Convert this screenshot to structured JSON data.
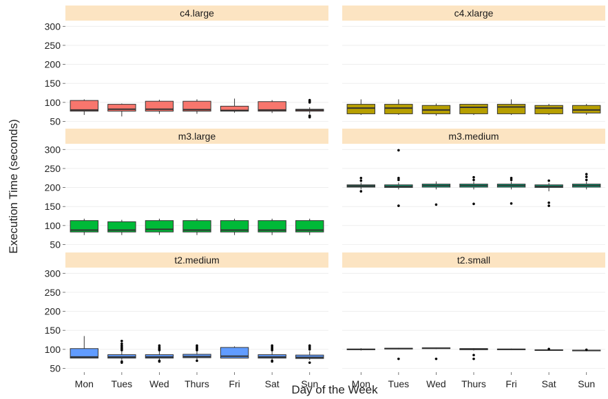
{
  "chart_data": {
    "type": "boxplot",
    "xlabel": "Day of the Week",
    "ylabel": "Execution Time (seconds)",
    "categories": [
      "Mon",
      "Tues",
      "Wed",
      "Thurs",
      "Fri",
      "Sat",
      "Sun"
    ],
    "ylim": [
      40,
      315
    ],
    "yticks": [
      50,
      100,
      150,
      200,
      250,
      300
    ],
    "ytick_labels": [
      "50",
      "100",
      "150",
      "200",
      "250",
      "300"
    ],
    "grid": true,
    "panels": [
      {
        "name": "c4.large",
        "color": "#F8766D",
        "boxes": [
          {
            "day": "Mon",
            "min": 67,
            "q1": 77,
            "median": 80,
            "q3": 105,
            "max": 108,
            "outliers": []
          },
          {
            "day": "Tues",
            "min": 63,
            "q1": 77,
            "median": 82,
            "q3": 95,
            "max": 97,
            "outliers": []
          },
          {
            "day": "Wed",
            "min": 70,
            "q1": 77,
            "median": 82,
            "q3": 103,
            "max": 107,
            "outliers": []
          },
          {
            "day": "Thurs",
            "min": 70,
            "q1": 77,
            "median": 81,
            "q3": 103,
            "max": 108,
            "outliers": []
          },
          {
            "day": "Fri",
            "min": 73,
            "q1": 77,
            "median": 79,
            "q3": 90,
            "max": 110,
            "outliers": []
          },
          {
            "day": "Sat",
            "min": 72,
            "q1": 77,
            "median": 80,
            "q3": 102,
            "max": 106,
            "outliers": []
          },
          {
            "day": "Sun",
            "min": 70,
            "q1": 77,
            "median": 80,
            "q3": 82,
            "max": 87,
            "outliers": [
              61,
              63,
              65,
              100,
              103,
              106
            ]
          }
        ]
      },
      {
        "name": "c4.xlarge",
        "color": "#B79F00",
        "boxes": [
          {
            "day": "Mon",
            "min": 67,
            "q1": 70,
            "median": 85,
            "q3": 95,
            "max": 108,
            "outliers": []
          },
          {
            "day": "Tues",
            "min": 67,
            "q1": 70,
            "median": 85,
            "q3": 95,
            "max": 108,
            "outliers": []
          },
          {
            "day": "Wed",
            "min": 65,
            "q1": 70,
            "median": 80,
            "q3": 92,
            "max": 97,
            "outliers": []
          },
          {
            "day": "Thurs",
            "min": 67,
            "q1": 70,
            "median": 87,
            "q3": 95,
            "max": 96,
            "outliers": []
          },
          {
            "day": "Fri",
            "min": 67,
            "q1": 70,
            "median": 88,
            "q3": 95,
            "max": 108,
            "outliers": []
          },
          {
            "day": "Sat",
            "min": 67,
            "q1": 70,
            "median": 85,
            "q3": 92,
            "max": 96,
            "outliers": []
          },
          {
            "day": "Sun",
            "min": 67,
            "q1": 72,
            "median": 80,
            "q3": 92,
            "max": 96,
            "outliers": []
          }
        ]
      },
      {
        "name": "m3.large",
        "color": "#00BA38",
        "boxes": [
          {
            "day": "Mon",
            "min": 75,
            "q1": 83,
            "median": 88,
            "q3": 113,
            "max": 118,
            "outliers": []
          },
          {
            "day": "Tues",
            "min": 75,
            "q1": 83,
            "median": 88,
            "q3": 110,
            "max": 115,
            "outliers": []
          },
          {
            "day": "Wed",
            "min": 75,
            "q1": 83,
            "median": 90,
            "q3": 113,
            "max": 118,
            "outliers": []
          },
          {
            "day": "Thurs",
            "min": 75,
            "q1": 83,
            "median": 88,
            "q3": 113,
            "max": 118,
            "outliers": []
          },
          {
            "day": "Fri",
            "min": 75,
            "q1": 83,
            "median": 88,
            "q3": 113,
            "max": 118,
            "outliers": []
          },
          {
            "day": "Sat",
            "min": 75,
            "q1": 83,
            "median": 88,
            "q3": 113,
            "max": 118,
            "outliers": []
          },
          {
            "day": "Sun",
            "min": 75,
            "q1": 83,
            "median": 88,
            "q3": 113,
            "max": 118,
            "outliers": []
          }
        ]
      },
      {
        "name": "m3.medium",
        "color": "#00C08B",
        "boxes": [
          {
            "day": "Mon",
            "min": 195,
            "q1": 201,
            "median": 204,
            "q3": 207,
            "max": 213,
            "outliers": [
              190,
              218,
              225
            ]
          },
          {
            "day": "Tues",
            "min": 195,
            "q1": 200,
            "median": 203,
            "q3": 207,
            "max": 213,
            "outliers": [
              152,
              220,
              225,
              298
            ]
          },
          {
            "day": "Wed",
            "min": 195,
            "q1": 201,
            "median": 205,
            "q3": 209,
            "max": 216,
            "outliers": [
              155
            ]
          },
          {
            "day": "Thurs",
            "min": 195,
            "q1": 201,
            "median": 205,
            "q3": 209,
            "max": 216,
            "outliers": [
              157,
              220,
              227
            ]
          },
          {
            "day": "Fri",
            "min": 195,
            "q1": 201,
            "median": 205,
            "q3": 209,
            "max": 216,
            "outliers": [
              158,
              220,
              225
            ]
          },
          {
            "day": "Sat",
            "min": 190,
            "q1": 200,
            "median": 203,
            "q3": 207,
            "max": 212,
            "outliers": [
              152,
              160,
              218
            ]
          },
          {
            "day": "Sun",
            "min": 195,
            "q1": 201,
            "median": 205,
            "q3": 209,
            "max": 216,
            "outliers": [
              220,
              228,
              235
            ]
          }
        ]
      },
      {
        "name": "t2.medium",
        "color": "#619CFF",
        "boxes": [
          {
            "day": "Mon",
            "min": 77,
            "q1": 77,
            "median": 80,
            "q3": 102,
            "max": 135,
            "outliers": []
          },
          {
            "day": "Tues",
            "min": 72,
            "q1": 77,
            "median": 80,
            "q3": 86,
            "max": 95,
            "outliers": [
              65,
              68,
              98,
              102,
              106,
              110,
              115,
              122
            ]
          },
          {
            "day": "Wed",
            "min": 72,
            "q1": 77,
            "median": 80,
            "q3": 86,
            "max": 95,
            "outliers": [
              68,
              70,
              98,
              100,
              103,
              106,
              110
            ]
          },
          {
            "day": "Thurs",
            "min": 72,
            "q1": 78,
            "median": 81,
            "q3": 87,
            "max": 95,
            "outliers": [
              70,
              98,
              102,
              106,
              110
            ]
          },
          {
            "day": "Fri",
            "min": 77,
            "q1": 77,
            "median": 82,
            "q3": 105,
            "max": 108,
            "outliers": []
          },
          {
            "day": "Sat",
            "min": 72,
            "q1": 77,
            "median": 80,
            "q3": 86,
            "max": 95,
            "outliers": [
              68,
              70,
              98,
              102,
              106,
              110
            ]
          },
          {
            "day": "Sun",
            "min": 72,
            "q1": 76,
            "median": 79,
            "q3": 85,
            "max": 95,
            "outliers": [
              65,
              100,
              104,
              108,
              110
            ]
          }
        ]
      },
      {
        "name": "t2.small",
        "color": "#F564E3",
        "boxes": [
          {
            "day": "Mon",
            "min": 97,
            "q1": 99,
            "median": 100,
            "q3": 101,
            "max": 103,
            "outliers": []
          },
          {
            "day": "Tues",
            "min": 100,
            "q1": 101,
            "median": 102,
            "q3": 103,
            "max": 104,
            "outliers": [
              75
            ]
          },
          {
            "day": "Wed",
            "min": 101,
            "q1": 102,
            "median": 103,
            "q3": 104,
            "max": 105,
            "outliers": [
              75
            ]
          },
          {
            "day": "Thurs",
            "min": 97,
            "q1": 99,
            "median": 101,
            "q3": 102,
            "max": 103,
            "outliers": [
              75,
              85
            ]
          },
          {
            "day": "Fri",
            "min": 98,
            "q1": 99,
            "median": 100,
            "q3": 101,
            "max": 102,
            "outliers": []
          },
          {
            "day": "Sat",
            "min": 96,
            "q1": 97,
            "median": 98,
            "q3": 99,
            "max": 100,
            "outliers": [
              101
            ]
          },
          {
            "day": "Sun",
            "min": 95,
            "q1": 96,
            "median": 97,
            "q3": 98,
            "max": 99,
            "outliers": [
              99
            ]
          }
        ]
      }
    ]
  }
}
